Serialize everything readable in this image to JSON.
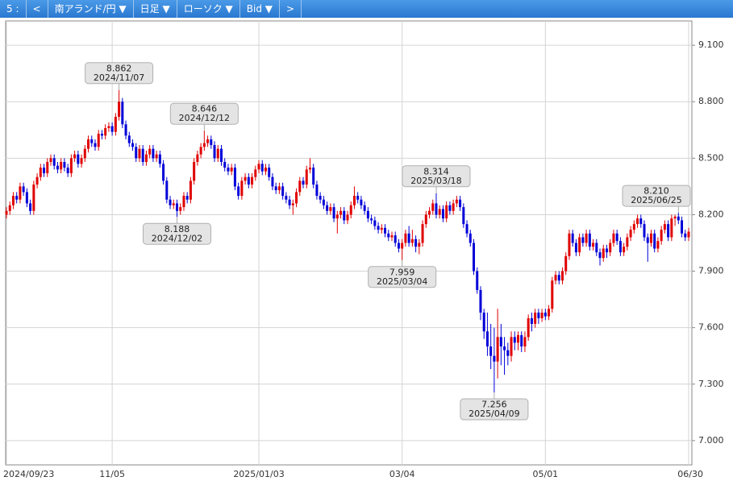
{
  "toolbar": {
    "items": [
      "5 :",
      "<",
      "南アランド/円 ▼",
      "日足 ▼",
      "ローソク ▼",
      "Bid ▼",
      ">"
    ]
  },
  "chart_data": {
    "type": "candlestick",
    "up_color": "#e00000",
    "down_color": "#0000d8",
    "grid": true,
    "ylim": [
      6.871,
      9.229
    ],
    "yticks": [
      {
        "value": 7.0,
        "label": "7.000"
      },
      {
        "value": 7.3,
        "label": "7.300"
      },
      {
        "value": 7.6,
        "label": "7.600"
      },
      {
        "value": 7.9,
        "label": "7.900"
      },
      {
        "value": 8.2,
        "label": "8.200"
      },
      {
        "value": 8.5,
        "label": "8.500"
      },
      {
        "value": 8.8,
        "label": "8.800"
      },
      {
        "value": 9.1,
        "label": "9.100"
      }
    ],
    "categories": [
      "2024/09/23",
      null,
      null,
      null,
      null,
      null,
      null,
      null,
      null,
      null,
      null,
      null,
      null,
      null,
      null,
      null,
      null,
      null,
      null,
      null,
      null,
      null,
      null,
      null,
      null,
      null,
      null,
      null,
      null,
      null,
      null,
      "11/05",
      null,
      null,
      null,
      null,
      null,
      null,
      null,
      null,
      null,
      null,
      null,
      null,
      null,
      null,
      null,
      null,
      null,
      null,
      null,
      null,
      null,
      null,
      null,
      null,
      null,
      null,
      null,
      null,
      null,
      null,
      null,
      null,
      null,
      null,
      null,
      null,
      null,
      null,
      null,
      null,
      null,
      null,
      "2025/01/03",
      null,
      null,
      null,
      null,
      null,
      null,
      null,
      null,
      null,
      null,
      null,
      null,
      null,
      null,
      null,
      null,
      null,
      null,
      null,
      null,
      null,
      null,
      null,
      null,
      null,
      null,
      null,
      null,
      null,
      null,
      null,
      null,
      null,
      null,
      null,
      null,
      null,
      null,
      null,
      null,
      null,
      "03/04",
      null,
      null,
      null,
      null,
      null,
      null,
      null,
      null,
      null,
      null,
      null,
      null,
      null,
      null,
      null,
      null,
      null,
      null,
      null,
      null,
      null,
      null,
      null,
      null,
      null,
      null,
      null,
      null,
      null,
      null,
      null,
      null,
      null,
      null,
      null,
      null,
      null,
      null,
      null,
      null,
      null,
      "05/01",
      null,
      null,
      null,
      null,
      null,
      null,
      null,
      null,
      null,
      null,
      null,
      null,
      null,
      null,
      null,
      null,
      null,
      null,
      null,
      null,
      null,
      null,
      null,
      null,
      null,
      null,
      null,
      null,
      null,
      null,
      null,
      null,
      null,
      null,
      null,
      null,
      null,
      null,
      null,
      null,
      null,
      "06/30"
    ],
    "ohlc": [
      [
        8.2,
        8.24,
        8.18,
        8.22
      ],
      [
        8.22,
        8.27,
        8.2,
        8.25
      ],
      [
        8.25,
        8.32,
        8.23,
        8.3
      ],
      [
        8.3,
        8.32,
        8.26,
        8.28
      ],
      [
        8.28,
        8.37,
        8.26,
        8.35
      ],
      [
        8.35,
        8.37,
        8.3,
        8.32
      ],
      [
        8.32,
        8.34,
        8.24,
        8.26
      ],
      [
        8.26,
        8.28,
        8.2,
        8.22
      ],
      [
        8.22,
        8.38,
        8.2,
        8.36
      ],
      [
        8.36,
        8.42,
        8.34,
        8.4
      ],
      [
        8.4,
        8.47,
        8.38,
        8.45
      ],
      [
        8.45,
        8.47,
        8.4,
        8.42
      ],
      [
        8.42,
        8.5,
        8.4,
        8.48
      ],
      [
        8.48,
        8.52,
        8.46,
        8.5
      ],
      [
        8.5,
        8.52,
        8.44,
        8.46
      ],
      [
        8.46,
        8.48,
        8.42,
        8.44
      ],
      [
        8.44,
        8.5,
        8.42,
        8.48
      ],
      [
        8.48,
        8.5,
        8.43,
        8.45
      ],
      [
        8.45,
        8.47,
        8.4,
        8.42
      ],
      [
        8.42,
        8.52,
        8.4,
        8.5
      ],
      [
        8.5,
        8.54,
        8.48,
        8.52
      ],
      [
        8.52,
        8.54,
        8.45,
        8.47
      ],
      [
        8.47,
        8.52,
        8.45,
        8.5
      ],
      [
        8.5,
        8.57,
        8.48,
        8.55
      ],
      [
        8.55,
        8.62,
        8.53,
        8.6
      ],
      [
        8.6,
        8.62,
        8.56,
        8.58
      ],
      [
        8.58,
        8.6,
        8.54,
        8.56
      ],
      [
        8.56,
        8.65,
        8.54,
        8.63
      ],
      [
        8.63,
        8.65,
        8.6,
        8.62
      ],
      [
        8.62,
        8.68,
        8.6,
        8.66
      ],
      [
        8.66,
        8.69,
        8.64,
        8.67
      ],
      [
        8.67,
        8.69,
        8.62,
        8.64
      ],
      [
        8.64,
        8.74,
        8.62,
        8.72
      ],
      [
        8.72,
        8.862,
        8.7,
        8.8
      ],
      [
        8.8,
        8.82,
        8.66,
        8.68
      ],
      [
        8.68,
        8.7,
        8.6,
        8.62
      ],
      [
        8.62,
        8.64,
        8.56,
        8.58
      ],
      [
        8.58,
        8.6,
        8.54,
        8.56
      ],
      [
        8.56,
        8.58,
        8.48,
        8.5
      ],
      [
        8.5,
        8.57,
        8.48,
        8.55
      ],
      [
        8.55,
        8.57,
        8.46,
        8.48
      ],
      [
        8.48,
        8.54,
        8.46,
        8.52
      ],
      [
        8.52,
        8.57,
        8.5,
        8.55
      ],
      [
        8.55,
        8.57,
        8.48,
        8.5
      ],
      [
        8.5,
        8.54,
        8.48,
        8.52
      ],
      [
        8.52,
        8.54,
        8.45,
        8.47
      ],
      [
        8.47,
        8.49,
        8.36,
        8.38
      ],
      [
        8.38,
        8.4,
        8.26,
        8.28
      ],
      [
        8.28,
        8.3,
        8.23,
        8.25
      ],
      [
        8.25,
        8.28,
        8.23,
        8.26
      ],
      [
        8.26,
        8.28,
        8.188,
        8.22
      ],
      [
        8.22,
        8.26,
        8.2,
        8.24
      ],
      [
        8.24,
        8.32,
        8.22,
        8.3
      ],
      [
        8.3,
        8.32,
        8.26,
        8.28
      ],
      [
        8.28,
        8.4,
        8.26,
        8.38
      ],
      [
        8.38,
        8.5,
        8.36,
        8.48
      ],
      [
        8.48,
        8.54,
        8.46,
        8.52
      ],
      [
        8.52,
        8.58,
        8.5,
        8.56
      ],
      [
        8.56,
        8.646,
        8.54,
        8.58
      ],
      [
        8.58,
        8.62,
        8.56,
        8.6
      ],
      [
        8.6,
        8.62,
        8.55,
        8.57
      ],
      [
        8.57,
        8.59,
        8.48,
        8.5
      ],
      [
        8.5,
        8.57,
        8.48,
        8.55
      ],
      [
        8.55,
        8.57,
        8.46,
        8.48
      ],
      [
        8.48,
        8.5,
        8.43,
        8.45
      ],
      [
        8.45,
        8.47,
        8.41,
        8.43
      ],
      [
        8.43,
        8.47,
        8.41,
        8.45
      ],
      [
        8.45,
        8.47,
        8.33,
        8.35
      ],
      [
        8.35,
        8.37,
        8.28,
        8.3
      ],
      [
        8.3,
        8.4,
        8.28,
        8.38
      ],
      [
        8.38,
        8.42,
        8.36,
        8.4
      ],
      [
        8.4,
        8.42,
        8.34,
        8.36
      ],
      [
        8.36,
        8.42,
        8.34,
        8.4
      ],
      [
        8.4,
        8.46,
        8.38,
        8.44
      ],
      [
        8.44,
        8.49,
        8.42,
        8.47
      ],
      [
        8.47,
        8.49,
        8.41,
        8.43
      ],
      [
        8.43,
        8.47,
        8.41,
        8.45
      ],
      [
        8.45,
        8.47,
        8.38,
        8.4
      ],
      [
        8.4,
        8.42,
        8.33,
        8.35
      ],
      [
        8.35,
        8.37,
        8.31,
        8.33
      ],
      [
        8.33,
        8.37,
        8.31,
        8.35
      ],
      [
        8.35,
        8.37,
        8.28,
        8.3
      ],
      [
        8.3,
        8.32,
        8.26,
        8.28
      ],
      [
        8.28,
        8.3,
        8.23,
        8.25
      ],
      [
        8.25,
        8.28,
        8.2,
        8.26
      ],
      [
        8.26,
        8.34,
        8.24,
        8.32
      ],
      [
        8.32,
        8.4,
        8.3,
        8.38
      ],
      [
        8.38,
        8.4,
        8.34,
        8.36
      ],
      [
        8.36,
        8.46,
        8.34,
        8.44
      ],
      [
        8.44,
        8.5,
        8.42,
        8.45
      ],
      [
        8.45,
        8.47,
        8.34,
        8.36
      ],
      [
        8.36,
        8.38,
        8.28,
        8.3
      ],
      [
        8.3,
        8.32,
        8.26,
        8.28
      ],
      [
        8.28,
        8.3,
        8.23,
        8.25
      ],
      [
        8.25,
        8.27,
        8.2,
        8.22
      ],
      [
        8.22,
        8.26,
        8.2,
        8.24
      ],
      [
        8.24,
        8.26,
        8.16,
        8.18
      ],
      [
        8.18,
        8.22,
        8.1,
        8.2
      ],
      [
        8.2,
        8.24,
        8.18,
        8.22
      ],
      [
        8.22,
        8.24,
        8.15,
        8.17
      ],
      [
        8.17,
        8.22,
        8.15,
        8.2
      ],
      [
        8.2,
        8.27,
        8.18,
        8.25
      ],
      [
        8.25,
        8.35,
        8.23,
        8.3
      ],
      [
        8.3,
        8.32,
        8.26,
        8.28
      ],
      [
        8.28,
        8.3,
        8.23,
        8.25
      ],
      [
        8.25,
        8.27,
        8.2,
        8.22
      ],
      [
        8.22,
        8.24,
        8.16,
        8.18
      ],
      [
        8.18,
        8.2,
        8.15,
        8.17
      ],
      [
        8.17,
        8.19,
        8.12,
        8.14
      ],
      [
        8.14,
        8.16,
        8.1,
        8.12
      ],
      [
        8.12,
        8.15,
        8.1,
        8.13
      ],
      [
        8.13,
        8.15,
        8.08,
        8.1
      ],
      [
        8.1,
        8.12,
        8.06,
        8.08
      ],
      [
        8.08,
        8.11,
        8.06,
        8.09
      ],
      [
        8.09,
        8.11,
        8.03,
        8.05
      ],
      [
        8.05,
        8.07,
        8.0,
        8.02
      ],
      [
        8.02,
        8.07,
        7.959,
        8.05
      ],
      [
        8.05,
        8.12,
        8.03,
        8.1
      ],
      [
        8.1,
        8.14,
        8.03,
        8.05
      ],
      [
        8.05,
        8.12,
        8.03,
        8.07
      ],
      [
        8.07,
        8.09,
        8.0,
        8.03
      ],
      [
        8.03,
        8.07,
        7.99,
        8.05
      ],
      [
        8.05,
        8.17,
        8.03,
        8.15
      ],
      [
        8.15,
        8.22,
        8.13,
        8.2
      ],
      [
        8.2,
        8.24,
        8.18,
        8.22
      ],
      [
        8.22,
        8.28,
        8.2,
        8.26
      ],
      [
        8.26,
        8.314,
        8.18,
        8.2
      ],
      [
        8.2,
        8.25,
        8.18,
        8.23
      ],
      [
        8.23,
        8.25,
        8.16,
        8.18
      ],
      [
        8.18,
        8.27,
        8.16,
        8.25
      ],
      [
        8.25,
        8.27,
        8.2,
        8.22
      ],
      [
        8.22,
        8.28,
        8.2,
        8.26
      ],
      [
        8.26,
        8.3,
        8.24,
        8.28
      ],
      [
        8.28,
        8.3,
        8.22,
        8.24
      ],
      [
        8.24,
        8.26,
        8.13,
        8.15
      ],
      [
        8.15,
        8.17,
        8.08,
        8.1
      ],
      [
        8.1,
        8.12,
        8.03,
        8.05
      ],
      [
        8.05,
        8.07,
        7.88,
        7.9
      ],
      [
        7.9,
        7.92,
        7.78,
        7.8
      ],
      [
        7.8,
        7.82,
        7.64,
        7.68
      ],
      [
        7.68,
        7.7,
        7.54,
        7.58
      ],
      [
        7.58,
        7.68,
        7.45,
        7.5
      ],
      [
        7.5,
        7.62,
        7.38,
        7.45
      ],
      [
        7.45,
        7.6,
        7.256,
        7.42
      ],
      [
        7.42,
        7.7,
        7.33,
        7.55
      ],
      [
        7.55,
        7.62,
        7.4,
        7.5
      ],
      [
        7.5,
        7.55,
        7.35,
        7.48
      ],
      [
        7.48,
        7.52,
        7.4,
        7.45
      ],
      [
        7.45,
        7.58,
        7.42,
        7.55
      ],
      [
        7.55,
        7.58,
        7.48,
        7.52
      ],
      [
        7.52,
        7.58,
        7.48,
        7.56
      ],
      [
        7.56,
        7.58,
        7.47,
        7.5
      ],
      [
        7.5,
        7.58,
        7.47,
        7.55
      ],
      [
        7.55,
        7.67,
        7.53,
        7.65
      ],
      [
        7.65,
        7.68,
        7.58,
        7.62
      ],
      [
        7.62,
        7.7,
        7.6,
        7.68
      ],
      [
        7.68,
        7.7,
        7.62,
        7.65
      ],
      [
        7.65,
        7.7,
        7.63,
        7.68
      ],
      [
        7.68,
        7.7,
        7.64,
        7.66
      ],
      [
        7.66,
        7.72,
        7.64,
        7.7
      ],
      [
        7.7,
        7.87,
        7.68,
        7.85
      ],
      [
        7.85,
        7.9,
        7.83,
        7.88
      ],
      [
        7.88,
        7.9,
        7.83,
        7.85
      ],
      [
        7.85,
        7.92,
        7.83,
        7.9
      ],
      [
        7.9,
        8.0,
        7.88,
        7.98
      ],
      [
        7.98,
        8.12,
        7.96,
        8.1
      ],
      [
        8.1,
        8.12,
        8.03,
        8.05
      ],
      [
        8.05,
        8.07,
        7.98,
        8.0
      ],
      [
        8.0,
        8.1,
        7.98,
        8.08
      ],
      [
        8.08,
        8.1,
        8.03,
        8.05
      ],
      [
        8.05,
        8.12,
        8.03,
        8.1
      ],
      [
        8.1,
        8.12,
        8.01,
        8.03
      ],
      [
        8.03,
        8.07,
        8.01,
        8.05
      ],
      [
        8.05,
        8.07,
        7.98,
        8.0
      ],
      [
        8.0,
        8.02,
        7.93,
        7.97
      ],
      [
        7.97,
        8.04,
        7.95,
        8.02
      ],
      [
        8.02,
        8.04,
        7.97,
        8.0
      ],
      [
        8.0,
        8.07,
        7.98,
        8.05
      ],
      [
        8.05,
        8.12,
        8.03,
        8.1
      ],
      [
        8.1,
        8.12,
        8.04,
        8.06
      ],
      [
        8.06,
        8.08,
        7.98,
        8.0
      ],
      [
        8.0,
        8.05,
        7.98,
        8.03
      ],
      [
        8.03,
        8.1,
        8.01,
        8.08
      ],
      [
        8.08,
        8.14,
        8.06,
        8.12
      ],
      [
        8.12,
        8.17,
        8.1,
        8.15
      ],
      [
        8.15,
        8.2,
        8.13,
        8.18
      ],
      [
        8.18,
        8.2,
        8.13,
        8.15
      ],
      [
        8.15,
        8.17,
        8.06,
        8.08
      ],
      [
        8.08,
        8.1,
        7.95,
        8.05
      ],
      [
        8.05,
        8.12,
        8.03,
        8.1
      ],
      [
        8.1,
        8.12,
        8.0,
        8.02
      ],
      [
        8.02,
        8.08,
        8.0,
        8.06
      ],
      [
        8.06,
        8.14,
        8.04,
        8.12
      ],
      [
        8.12,
        8.17,
        8.1,
        8.15
      ],
      [
        8.15,
        8.17,
        8.06,
        8.08
      ],
      [
        8.08,
        8.2,
        8.06,
        8.18
      ],
      [
        8.18,
        8.2,
        8.14,
        8.19
      ],
      [
        8.19,
        8.21,
        8.15,
        8.17
      ],
      [
        8.17,
        8.19,
        8.08,
        8.1
      ],
      [
        8.1,
        8.12,
        8.06,
        8.08
      ],
      [
        8.08,
        8.13,
        8.06,
        8.11
      ]
    ],
    "annotations": [
      {
        "value": 8.862,
        "label": "8.862",
        "date": "2024/11/07"
      },
      {
        "value": 8.188,
        "label": "8.188",
        "date": "2024/12/02"
      },
      {
        "value": 8.646,
        "label": "8.646",
        "date": "2024/12/12"
      },
      {
        "value": 7.959,
        "label": "7.959",
        "date": "2025/03/04"
      },
      {
        "value": 8.314,
        "label": "8.314",
        "date": "2025/03/18"
      },
      {
        "value": 7.256,
        "label": "7.256",
        "date": "2025/04/09"
      },
      {
        "value": 8.21,
        "label": "8.210",
        "date": "2025/06/25"
      }
    ]
  }
}
